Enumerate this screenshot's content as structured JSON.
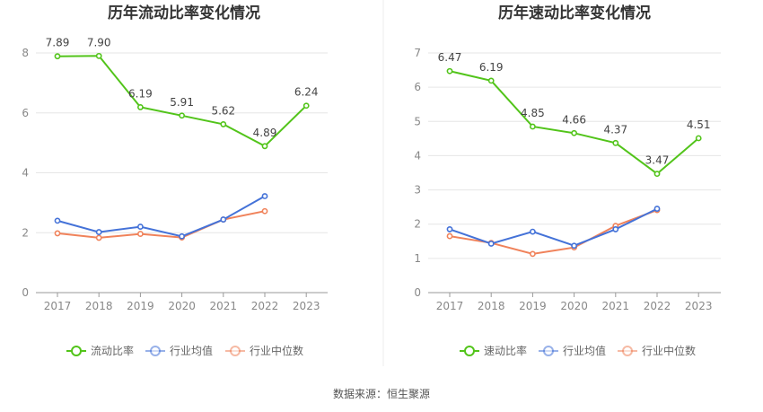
{
  "source_text": "数据来源：恒生聚源",
  "colors": {
    "main": "#52c41a",
    "avg": "#4472d8",
    "median": "#f0825a",
    "grid": "#e6e6e6",
    "axis": "#999999"
  },
  "chart_data": [
    {
      "type": "line",
      "title": "历年流动比率变化情况",
      "categories": [
        "2017",
        "2018",
        "2019",
        "2020",
        "2021",
        "2022",
        "2023"
      ],
      "ylim": [
        0,
        8
      ],
      "yticks": [
        "0",
        "2",
        "4",
        "6",
        "8"
      ],
      "legend_position": "bottom",
      "series": [
        {
          "name": "流动比率",
          "values": [
            7.89,
            7.9,
            6.19,
            5.91,
            5.62,
            4.89,
            6.24
          ],
          "labels": [
            "7.89",
            "7.90",
            "6.19",
            "5.91",
            "5.62",
            "4.89",
            "6.24"
          ]
        },
        {
          "name": "行业均值",
          "values": [
            2.4,
            2.02,
            2.2,
            1.88,
            2.44,
            3.22,
            null
          ]
        },
        {
          "name": "行业中位数",
          "values": [
            1.98,
            1.83,
            1.96,
            1.84,
            2.44,
            2.72,
            null
          ]
        }
      ]
    },
    {
      "type": "line",
      "title": "历年速动比率变化情况",
      "categories": [
        "2017",
        "2018",
        "2019",
        "2020",
        "2021",
        "2022",
        "2023"
      ],
      "ylim": [
        0,
        7
      ],
      "yticks": [
        "0",
        "1",
        "2",
        "3",
        "4",
        "5",
        "6",
        "7"
      ],
      "legend_position": "bottom",
      "series": [
        {
          "name": "速动比率",
          "values": [
            6.47,
            6.19,
            4.85,
            4.66,
            4.37,
            3.47,
            4.51
          ],
          "labels": [
            "6.47",
            "6.19",
            "4.85",
            "4.66",
            "4.37",
            "3.47",
            "4.51"
          ]
        },
        {
          "name": "行业均值",
          "values": [
            1.85,
            1.43,
            1.78,
            1.37,
            1.85,
            2.45,
            null
          ]
        },
        {
          "name": "行业中位数",
          "values": [
            1.65,
            1.45,
            1.13,
            1.32,
            1.95,
            2.41,
            null
          ]
        }
      ]
    }
  ]
}
